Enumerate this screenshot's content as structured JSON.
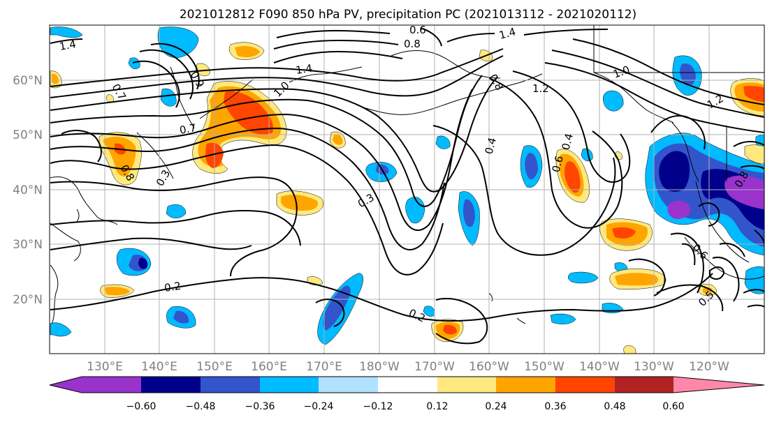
{
  "title": "2021012812 F090 850 hPa PV, precipitation PC (2021013112 - 2021020112)",
  "map": {
    "lon_labels": [
      "130°E",
      "140°E",
      "150°E",
      "160°E",
      "170°E",
      "180°W",
      "170°W",
      "160°W",
      "150°W",
      "140°W",
      "130°W",
      "120°W"
    ],
    "lat_labels": [
      "60°N",
      "50°N",
      "40°N",
      "30°N",
      "20°N"
    ],
    "gridline_color": "#b0b0b0"
  },
  "contour_labels": [
    "0.6",
    "0.8",
    "1.4",
    "1.4",
    "1.4",
    "1.0",
    "1.2",
    "0.8",
    "0.9",
    "0.7",
    "0.8",
    "0.3",
    "0.3",
    "0.4",
    "0.4",
    "0.6",
    "0.8",
    "0.2",
    "0.2",
    "0.5",
    "0.6",
    "1.0",
    "1.2",
    "0.7"
  ],
  "colorbar": {
    "ticks": [
      "−0.60",
      "−0.48",
      "−0.36",
      "−0.24",
      "−0.12",
      "0.12",
      "0.24",
      "0.36",
      "0.48",
      "0.60"
    ],
    "colors": [
      "#9933cc",
      "#00008b",
      "#3355cc",
      "#00bbff",
      "#b0e2ff",
      "#ffffff",
      "#ffe97f",
      "#ffa500",
      "#ff4500",
      "#b22222",
      "#ff88aa"
    ]
  }
}
